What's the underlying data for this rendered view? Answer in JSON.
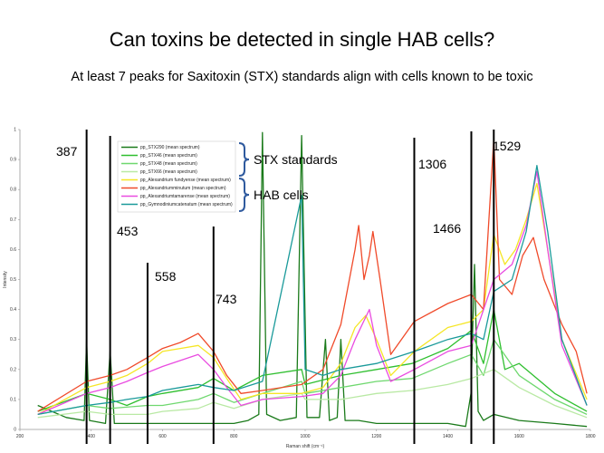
{
  "slide": {
    "title": "Can toxins be detected in single HAB cells?",
    "subtitle": "At least 7 peaks for Saxitoxin (STX) standards align with cells known to be toxic"
  },
  "chart_data": {
    "type": "line",
    "xlabel": "Raman shift (cm⁻¹)",
    "ylabel": "Intensity",
    "xlim": [
      200,
      1800
    ],
    "ylim": [
      0,
      1
    ],
    "xticks": [
      200,
      400,
      600,
      800,
      1000,
      1200,
      1400,
      1600,
      1800
    ],
    "yticks": [
      0,
      0.1,
      0.2,
      0.3,
      0.4,
      0.5,
      0.6,
      0.7,
      0.8,
      0.9,
      1
    ],
    "grid": false,
    "legend_position": "top-left",
    "peak_lines": [
      {
        "label": "387",
        "x": 387
      },
      {
        "label": "453",
        "x": 453
      },
      {
        "label": "558",
        "x": 558
      },
      {
        "label": "743",
        "x": 743
      },
      {
        "label": "1306",
        "x": 1306
      },
      {
        "label": "1466",
        "x": 1466
      },
      {
        "label": "1529",
        "x": 1529
      }
    ],
    "groups": [
      {
        "label": "STX standards",
        "series_range": [
          0,
          3
        ]
      },
      {
        "label": "HAB cells",
        "series_range": [
          4,
          7
        ]
      }
    ],
    "series": [
      {
        "name": "pp_STX290 (mean spectrum)",
        "color": "#1a7a1a",
        "points": [
          [
            250,
            0.08
          ],
          [
            330,
            0.04
          ],
          [
            380,
            0.03
          ],
          [
            387,
            0.3
          ],
          [
            395,
            0.03
          ],
          [
            440,
            0.02
          ],
          [
            453,
            0.26
          ],
          [
            465,
            0.02
          ],
          [
            550,
            0.02
          ],
          [
            600,
            0.02
          ],
          [
            700,
            0.02
          ],
          [
            800,
            0.02
          ],
          [
            840,
            0.03
          ],
          [
            870,
            0.05
          ],
          [
            880,
            0.99
          ],
          [
            892,
            0.05
          ],
          [
            930,
            0.03
          ],
          [
            975,
            0.04
          ],
          [
            990,
            0.98
          ],
          [
            1005,
            0.04
          ],
          [
            1040,
            0.04
          ],
          [
            1057,
            0.3
          ],
          [
            1068,
            0.03
          ],
          [
            1090,
            0.04
          ],
          [
            1100,
            0.3
          ],
          [
            1112,
            0.03
          ],
          [
            1150,
            0.03
          ],
          [
            1200,
            0.02
          ],
          [
            1300,
            0.02
          ],
          [
            1400,
            0.02
          ],
          [
            1450,
            0.01
          ],
          [
            1465,
            0.12
          ],
          [
            1475,
            0.55
          ],
          [
            1485,
            0.06
          ],
          [
            1500,
            0.03
          ],
          [
            1529,
            0.05
          ],
          [
            1600,
            0.03
          ],
          [
            1700,
            0.02
          ],
          [
            1790,
            0.01
          ]
        ]
      },
      {
        "name": "pp_STX46 (mean spectrum)",
        "color": "#2fbf2f",
        "points": [
          [
            250,
            0.06
          ],
          [
            387,
            0.12
          ],
          [
            453,
            0.1
          ],
          [
            500,
            0.08
          ],
          [
            558,
            0.11
          ],
          [
            600,
            0.12
          ],
          [
            700,
            0.14
          ],
          [
            743,
            0.17
          ],
          [
            800,
            0.13
          ],
          [
            880,
            0.18
          ],
          [
            990,
            0.2
          ],
          [
            1000,
            0.15
          ],
          [
            1100,
            0.18
          ],
          [
            1200,
            0.2
          ],
          [
            1300,
            0.22
          ],
          [
            1400,
            0.27
          ],
          [
            1466,
            0.33
          ],
          [
            1500,
            0.22
          ],
          [
            1529,
            0.4
          ],
          [
            1560,
            0.2
          ],
          [
            1600,
            0.22
          ],
          [
            1700,
            0.12
          ],
          [
            1790,
            0.06
          ]
        ]
      },
      {
        "name": "pp_STX48 (mean spectrum)",
        "color": "#6fd86f",
        "points": [
          [
            250,
            0.05
          ],
          [
            387,
            0.08
          ],
          [
            453,
            0.07
          ],
          [
            558,
            0.08
          ],
          [
            600,
            0.08
          ],
          [
            700,
            0.1
          ],
          [
            743,
            0.12
          ],
          [
            800,
            0.09
          ],
          [
            880,
            0.12
          ],
          [
            990,
            0.16
          ],
          [
            1000,
            0.12
          ],
          [
            1100,
            0.14
          ],
          [
            1200,
            0.16
          ],
          [
            1300,
            0.17
          ],
          [
            1400,
            0.22
          ],
          [
            1466,
            0.25
          ],
          [
            1500,
            0.18
          ],
          [
            1529,
            0.3
          ],
          [
            1600,
            0.18
          ],
          [
            1700,
            0.1
          ],
          [
            1790,
            0.05
          ]
        ]
      },
      {
        "name": "pp_STX66 (mean spectrum)",
        "color": "#b9e9a4",
        "points": [
          [
            250,
            0.04
          ],
          [
            387,
            0.06
          ],
          [
            453,
            0.05
          ],
          [
            558,
            0.05
          ],
          [
            600,
            0.06
          ],
          [
            700,
            0.07
          ],
          [
            743,
            0.09
          ],
          [
            800,
            0.07
          ],
          [
            880,
            0.1
          ],
          [
            990,
            0.12
          ],
          [
            1000,
            0.1
          ],
          [
            1100,
            0.1
          ],
          [
            1200,
            0.12
          ],
          [
            1300,
            0.13
          ],
          [
            1400,
            0.15
          ],
          [
            1466,
            0.17
          ],
          [
            1529,
            0.2
          ],
          [
            1600,
            0.14
          ],
          [
            1700,
            0.08
          ],
          [
            1790,
            0.04
          ]
        ]
      },
      {
        "name": "pp_Alexandrium fundyense (mean spectrum)",
        "color": "#f5e625",
        "points": [
          [
            250,
            0.05
          ],
          [
            387,
            0.14
          ],
          [
            453,
            0.16
          ],
          [
            500,
            0.18
          ],
          [
            558,
            0.22
          ],
          [
            600,
            0.26
          ],
          [
            650,
            0.27
          ],
          [
            700,
            0.28
          ],
          [
            743,
            0.24
          ],
          [
            780,
            0.17
          ],
          [
            820,
            0.1
          ],
          [
            880,
            0.12
          ],
          [
            990,
            0.12
          ],
          [
            1050,
            0.14
          ],
          [
            1100,
            0.22
          ],
          [
            1140,
            0.34
          ],
          [
            1170,
            0.38
          ],
          [
            1200,
            0.3
          ],
          [
            1240,
            0.18
          ],
          [
            1306,
            0.26
          ],
          [
            1400,
            0.34
          ],
          [
            1466,
            0.36
          ],
          [
            1500,
            0.4
          ],
          [
            1529,
            0.65
          ],
          [
            1560,
            0.55
          ],
          [
            1590,
            0.6
          ],
          [
            1620,
            0.7
          ],
          [
            1650,
            0.82
          ],
          [
            1680,
            0.6
          ],
          [
            1720,
            0.3
          ],
          [
            1790,
            0.1
          ]
        ]
      },
      {
        "name": "pp_Alexandriumminutum (mean spectrum)",
        "color": "#f04a2a",
        "points": [
          [
            250,
            0.06
          ],
          [
            387,
            0.16
          ],
          [
            453,
            0.18
          ],
          [
            500,
            0.2
          ],
          [
            558,
            0.24
          ],
          [
            600,
            0.27
          ],
          [
            650,
            0.29
          ],
          [
            700,
            0.32
          ],
          [
            743,
            0.26
          ],
          [
            780,
            0.18
          ],
          [
            820,
            0.12
          ],
          [
            880,
            0.13
          ],
          [
            990,
            0.15
          ],
          [
            1050,
            0.2
          ],
          [
            1100,
            0.35
          ],
          [
            1140,
            0.6
          ],
          [
            1150,
            0.68
          ],
          [
            1165,
            0.5
          ],
          [
            1180,
            0.58
          ],
          [
            1190,
            0.66
          ],
          [
            1210,
            0.5
          ],
          [
            1240,
            0.25
          ],
          [
            1306,
            0.36
          ],
          [
            1400,
            0.42
          ],
          [
            1466,
            0.45
          ],
          [
            1500,
            0.4
          ],
          [
            1529,
            0.97
          ],
          [
            1545,
            0.5
          ],
          [
            1580,
            0.45
          ],
          [
            1610,
            0.58
          ],
          [
            1640,
            0.64
          ],
          [
            1670,
            0.5
          ],
          [
            1720,
            0.35
          ],
          [
            1760,
            0.26
          ],
          [
            1790,
            0.12
          ]
        ]
      },
      {
        "name": "pp_Alexandriumtamarense (mean spectrum)",
        "color": "#e94be0",
        "points": [
          [
            250,
            0.05
          ],
          [
            387,
            0.12
          ],
          [
            453,
            0.14
          ],
          [
            500,
            0.16
          ],
          [
            558,
            0.19
          ],
          [
            600,
            0.21
          ],
          [
            650,
            0.23
          ],
          [
            700,
            0.25
          ],
          [
            743,
            0.2
          ],
          [
            780,
            0.14
          ],
          [
            820,
            0.08
          ],
          [
            880,
            0.1
          ],
          [
            990,
            0.11
          ],
          [
            1050,
            0.12
          ],
          [
            1100,
            0.18
          ],
          [
            1140,
            0.3
          ],
          [
            1160,
            0.35
          ],
          [
            1180,
            0.4
          ],
          [
            1200,
            0.28
          ],
          [
            1240,
            0.16
          ],
          [
            1306,
            0.2
          ],
          [
            1400,
            0.26
          ],
          [
            1466,
            0.28
          ],
          [
            1529,
            0.5
          ],
          [
            1580,
            0.55
          ],
          [
            1620,
            0.68
          ],
          [
            1650,
            0.86
          ],
          [
            1680,
            0.6
          ],
          [
            1720,
            0.28
          ],
          [
            1790,
            0.08
          ]
        ]
      },
      {
        "name": "pp_Gymnodiniumcatenatum (mean spectrum)",
        "color": "#1a9a9a",
        "points": [
          [
            250,
            0.05
          ],
          [
            387,
            0.08
          ],
          [
            453,
            0.09
          ],
          [
            500,
            0.1
          ],
          [
            558,
            0.11
          ],
          [
            600,
            0.13
          ],
          [
            650,
            0.14
          ],
          [
            700,
            0.15
          ],
          [
            743,
            0.14
          ],
          [
            800,
            0.13
          ],
          [
            880,
            0.16
          ],
          [
            990,
            0.78
          ],
          [
            1000,
            0.2
          ],
          [
            1050,
            0.18
          ],
          [
            1100,
            0.2
          ],
          [
            1200,
            0.22
          ],
          [
            1306,
            0.26
          ],
          [
            1400,
            0.3
          ],
          [
            1466,
            0.32
          ],
          [
            1500,
            0.3
          ],
          [
            1529,
            0.46
          ],
          [
            1580,
            0.5
          ],
          [
            1620,
            0.66
          ],
          [
            1650,
            0.88
          ],
          [
            1680,
            0.66
          ],
          [
            1720,
            0.3
          ],
          [
            1790,
            0.08
          ]
        ]
      }
    ]
  }
}
